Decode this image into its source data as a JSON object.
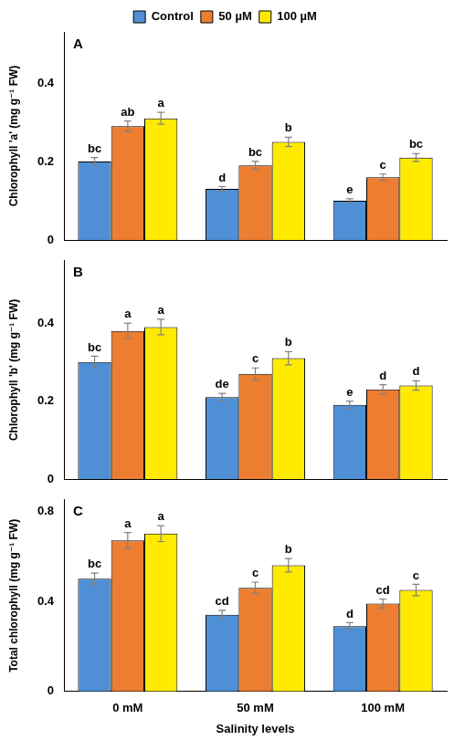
{
  "chart_data": [
    {
      "type": "bar",
      "title": "A",
      "y_label": "Chlorophyll 'a' (mg g⁻¹ FW)",
      "categories": [
        "0 mM",
        "50 mM",
        "100 mM"
      ],
      "series": [
        {
          "name": "Control",
          "color": "#4e8fd6",
          "values": [
            0.2,
            0.13,
            0.1
          ],
          "errors": [
            0.01,
            0.006,
            0.005
          ],
          "letters": [
            "bc",
            "d",
            "e"
          ]
        },
        {
          "name": "50 µM",
          "color": "#ed7d31",
          "values": [
            0.29,
            0.19,
            0.16
          ],
          "errors": [
            0.013,
            0.01,
            0.008
          ],
          "letters": [
            "ab",
            "bc",
            "c"
          ]
        },
        {
          "name": "100 µM",
          "color": "#ffea00",
          "values": [
            0.31,
            0.25,
            0.21
          ],
          "errors": [
            0.015,
            0.012,
            0.01
          ],
          "letters": [
            "a",
            "b",
            "bc"
          ]
        }
      ],
      "ylim": [
        0,
        0.53
      ],
      "yticks": [
        0,
        0.2,
        0.4
      ],
      "grid": false,
      "legend": "top",
      "tick_labels": "y"
    },
    {
      "type": "bar",
      "title": "B",
      "y_label": "Chlorophyll 'b' (mg g⁻¹ FW)",
      "categories": [
        "0 mM",
        "50 mM",
        "100 mM"
      ],
      "series": [
        {
          "color": "#4e8fd6",
          "values": [
            0.3,
            0.21,
            0.19
          ],
          "errors": [
            0.015,
            0.01,
            0.01
          ],
          "letters": [
            "bc",
            "de",
            "e"
          ]
        },
        {
          "color": "#ed7d31",
          "values": [
            0.38,
            0.27,
            0.23
          ],
          "errors": [
            0.02,
            0.015,
            0.012
          ],
          "letters": [
            "a",
            "c",
            "d"
          ]
        },
        {
          "color": "#ffea00",
          "values": [
            0.39,
            0.31,
            0.24
          ],
          "errors": [
            0.02,
            0.017,
            0.012
          ],
          "letters": [
            "a",
            "b",
            "d"
          ]
        }
      ],
      "ylim": [
        0,
        0.56
      ],
      "yticks": [
        0,
        0.2,
        0.4
      ],
      "grid": false,
      "tick_labels": "y"
    },
    {
      "type": "bar",
      "title": "C",
      "y_label": "Total chlorophyll (mg g⁻¹ FW)",
      "x_label": "Salinity levels",
      "categories": [
        "0 mM",
        "50 mM",
        "100 mM"
      ],
      "series": [
        {
          "color": "#4e8fd6",
          "values": [
            0.5,
            0.34,
            0.29
          ],
          "errors": [
            0.025,
            0.02,
            0.015
          ],
          "letters": [
            "bc",
            "cd",
            "d"
          ]
        },
        {
          "color": "#ed7d31",
          "values": [
            0.67,
            0.46,
            0.39
          ],
          "errors": [
            0.035,
            0.025,
            0.02
          ],
          "letters": [
            "a",
            "c",
            "cd"
          ]
        },
        {
          "color": "#ffea00",
          "values": [
            0.7,
            0.56,
            0.45
          ],
          "errors": [
            0.035,
            0.03,
            0.025
          ],
          "letters": [
            "a",
            "b",
            "c"
          ]
        }
      ],
      "ylim": [
        0,
        0.85
      ],
      "yticks": [
        0,
        0.4,
        0.8
      ],
      "grid": false
    }
  ]
}
